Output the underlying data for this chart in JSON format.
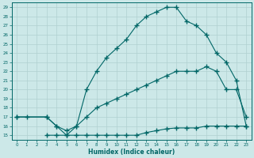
{
  "xlabel": "Humidex (Indice chaleur)",
  "bg_color": "#cce8e8",
  "grid_color": "#b0d0d0",
  "line_color": "#006666",
  "xlim": [
    -0.5,
    23.5
  ],
  "ylim": [
    14.5,
    29.5
  ],
  "yticks": [
    15,
    16,
    17,
    18,
    19,
    20,
    21,
    22,
    23,
    24,
    25,
    26,
    27,
    28,
    29
  ],
  "xticks": [
    0,
    1,
    2,
    3,
    4,
    5,
    6,
    7,
    8,
    9,
    10,
    11,
    12,
    13,
    14,
    15,
    16,
    17,
    18,
    19,
    20,
    21,
    22,
    23
  ],
  "curve1_x": [
    0,
    1,
    3,
    4,
    5,
    6,
    7,
    8,
    9,
    10,
    11,
    12,
    13,
    14,
    15,
    16,
    17,
    18,
    19,
    20,
    21,
    22,
    23
  ],
  "curve1_y": [
    17,
    17,
    17,
    16,
    15,
    16,
    20,
    22,
    23.5,
    24.5,
    25.5,
    27,
    28,
    28.5,
    29,
    29,
    27.5,
    27,
    26,
    24,
    23,
    21,
    16
  ],
  "curve2_x": [
    0,
    3,
    4,
    5,
    6,
    7,
    8,
    9,
    10,
    11,
    12,
    13,
    14,
    15,
    16,
    17,
    18,
    19,
    20,
    21,
    22,
    23
  ],
  "curve2_y": [
    17,
    17,
    16,
    15.5,
    16,
    17,
    18,
    18.5,
    19,
    19.5,
    20,
    20.5,
    21,
    21.5,
    22,
    22,
    22,
    22.5,
    22,
    20,
    20,
    17
  ],
  "curve3_x": [
    3,
    4,
    5,
    6,
    7,
    8,
    9,
    10,
    11,
    12,
    13,
    14,
    15,
    16,
    17,
    18,
    19,
    20,
    21,
    22,
    23
  ],
  "curve3_y": [
    15,
    15,
    15,
    15,
    15,
    15,
    15,
    15,
    15,
    15,
    15.3,
    15.5,
    15.7,
    15.8,
    15.8,
    15.8,
    16,
    16,
    16,
    16,
    16
  ]
}
